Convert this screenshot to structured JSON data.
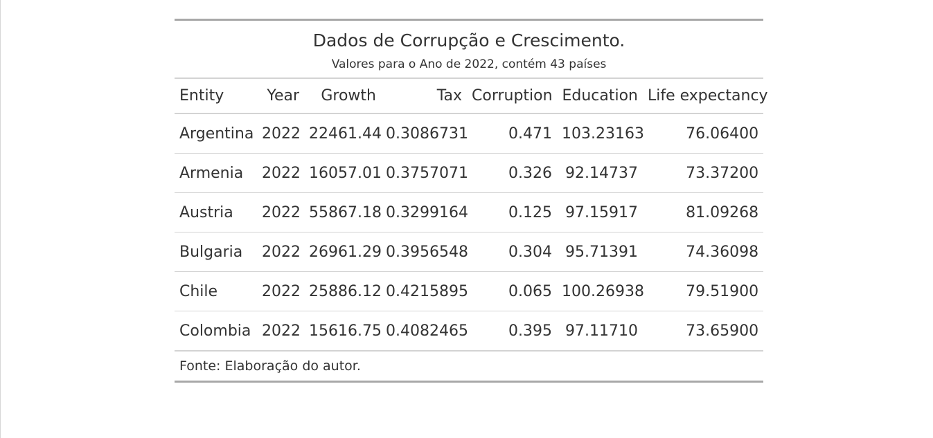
{
  "table": {
    "title": "Dados de Corrupção e Crescimento.",
    "subtitle": "Valores para o Ano de 2022, contém 43 países",
    "columns": [
      "Entity",
      "Year",
      "Growth",
      "Tax",
      "Corruption",
      "Education",
      "Life expectancy"
    ],
    "rows": [
      [
        "Argentina",
        "2022",
        "22461.44",
        "0.3086731",
        "0.471",
        "103.23163",
        "76.06400"
      ],
      [
        "Armenia",
        "2022",
        "16057.01",
        "0.3757071",
        "0.326",
        "92.14737",
        "73.37200"
      ],
      [
        "Austria",
        "2022",
        "55867.18",
        "0.3299164",
        "0.125",
        "97.15917",
        "81.09268"
      ],
      [
        "Bulgaria",
        "2022",
        "26961.29",
        "0.3956548",
        "0.304",
        "95.71391",
        "74.36098"
      ],
      [
        "Chile",
        "2022",
        "25886.12",
        "0.4215895",
        "0.065",
        "100.26938",
        "79.51900"
      ],
      [
        "Colombia",
        "2022",
        "15616.75",
        "0.4082465",
        "0.395",
        "97.11710",
        "73.65900"
      ]
    ],
    "source_note": "Fonte: Elaboração do autor."
  }
}
